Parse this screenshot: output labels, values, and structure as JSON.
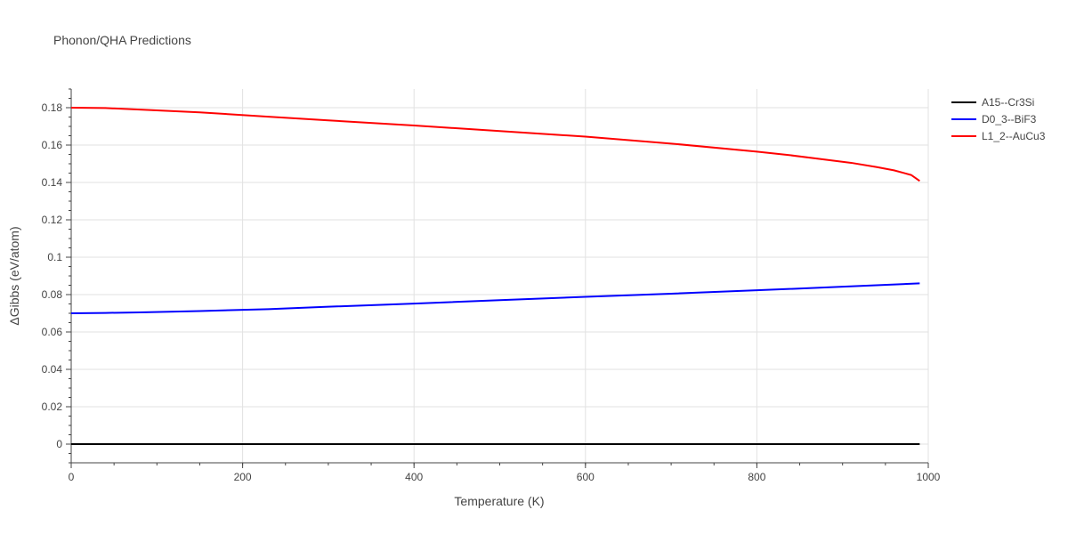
{
  "chart_data": {
    "type": "line",
    "title": "Phonon/QHA Predictions",
    "xlabel": "Temperature (K)",
    "ylabel": "ΔGibbs (eV/atom)",
    "xlim": [
      0,
      1000
    ],
    "ylim": [
      -0.01,
      0.19
    ],
    "x_ticks": [
      0,
      200,
      400,
      600,
      800,
      1000
    ],
    "x_tick_labels": [
      "0",
      "200",
      "400",
      "600",
      "800",
      "1000"
    ],
    "y_ticks": [
      0,
      0.02,
      0.04,
      0.06,
      0.08,
      0.1,
      0.12,
      0.14,
      0.16,
      0.18
    ],
    "y_tick_labels": [
      "0",
      "0.02",
      "0.04",
      "0.06",
      "0.08",
      "0.1",
      "0.12",
      "0.14",
      "0.16",
      "0.18"
    ],
    "grid": true,
    "legend_position": "top-right",
    "series": [
      {
        "name": "A15--Cr3Si",
        "color": "#000000",
        "x": [
          0,
          100,
          200,
          300,
          400,
          500,
          600,
          700,
          800,
          900,
          990
        ],
        "y": [
          0,
          0,
          0,
          0,
          0,
          0,
          0,
          0,
          0,
          0,
          0
        ]
      },
      {
        "name": "D0_3--BiF3",
        "color": "#0000ff",
        "x": [
          0,
          40,
          80,
          150,
          230,
          300,
          400,
          500,
          600,
          700,
          800,
          900,
          990
        ],
        "y": [
          0.07,
          0.0702,
          0.0705,
          0.0712,
          0.0722,
          0.0735,
          0.0752,
          0.077,
          0.0788,
          0.0805,
          0.0823,
          0.0842,
          0.086
        ]
      },
      {
        "name": "L1_2--AuCu3",
        "color": "#ff0000",
        "x": [
          0,
          40,
          80,
          150,
          230,
          300,
          400,
          500,
          600,
          700,
          800,
          840,
          880,
          910,
          940,
          960,
          980,
          990
        ],
        "y": [
          0.18,
          0.1798,
          0.179,
          0.1775,
          0.1752,
          0.1732,
          0.1705,
          0.1675,
          0.1645,
          0.1608,
          0.1565,
          0.1545,
          0.1522,
          0.1505,
          0.1482,
          0.1465,
          0.144,
          0.1408
        ]
      }
    ]
  }
}
